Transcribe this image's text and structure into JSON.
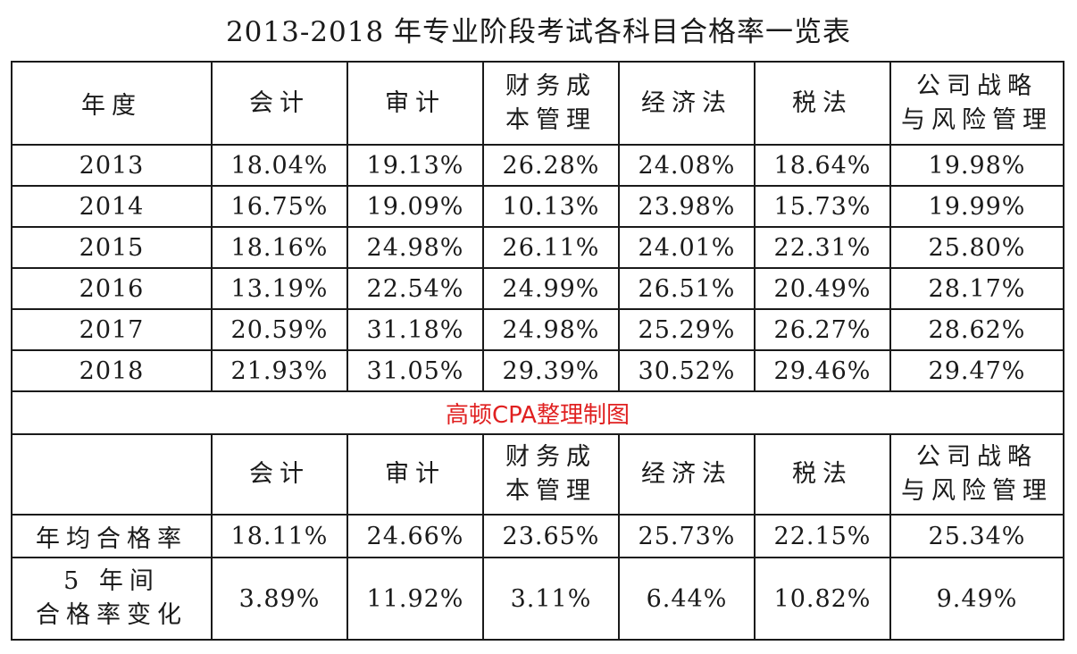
{
  "title": "2013-2018 年专业阶段考试各科目合格率一览表",
  "header": {
    "year_label": "年度",
    "subjects": [
      [
        "会计"
      ],
      [
        "审计"
      ],
      [
        "财务成",
        "本管理"
      ],
      [
        "经济法"
      ],
      [
        "税法"
      ],
      [
        "公司战略",
        "与风险管理"
      ]
    ]
  },
  "rows": [
    {
      "year": "2013",
      "values": [
        "18.04%",
        "19.13%",
        "26.28%",
        "24.08%",
        "18.64%",
        "19.98%"
      ]
    },
    {
      "year": "2014",
      "values": [
        "16.75%",
        "19.09%",
        "10.13%",
        "23.98%",
        "15.73%",
        "19.99%"
      ]
    },
    {
      "year": "2015",
      "values": [
        "18.16%",
        "24.98%",
        "26.11%",
        "24.01%",
        "22.31%",
        "25.80%"
      ]
    },
    {
      "year": "2016",
      "values": [
        "13.19%",
        "22.54%",
        "24.99%",
        "26.51%",
        "20.49%",
        "28.17%"
      ]
    },
    {
      "year": "2017",
      "values": [
        "20.59%",
        "31.18%",
        "24.98%",
        "25.29%",
        "26.27%",
        "28.62%"
      ]
    },
    {
      "year": "2018",
      "values": [
        "21.93%",
        "31.05%",
        "29.39%",
        "30.52%",
        "29.46%",
        "29.47%"
      ]
    }
  ],
  "credit": "高顿CPA整理制图",
  "summary": {
    "subjects": [
      [
        "会计"
      ],
      [
        "审计"
      ],
      [
        "财务成",
        "本管理"
      ],
      [
        "经济法"
      ],
      [
        "税法"
      ],
      [
        "公司战略",
        "与风险管理"
      ]
    ],
    "avg_label": "年均合格率",
    "avg_values": [
      "18.11%",
      "24.66%",
      "23.65%",
      "25.73%",
      "22.15%",
      "25.34%"
    ],
    "change_label": [
      "5 年间",
      "合格率变化"
    ],
    "change_values": [
      "3.89%",
      "11.92%",
      "3.11%",
      "6.44%",
      "10.82%",
      "9.49%"
    ]
  },
  "colors": {
    "credit_text": "#e02020",
    "border": "#1a1a1a"
  }
}
